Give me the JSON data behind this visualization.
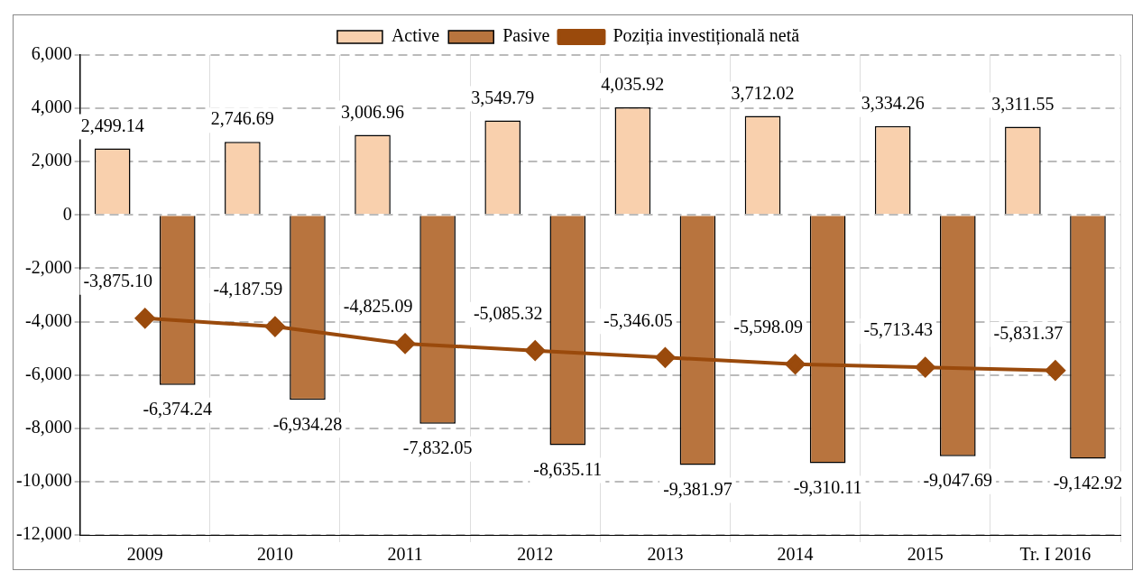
{
  "chart_data": {
    "type": "bar",
    "categories": [
      "2009",
      "2010",
      "2011",
      "2012",
      "2013",
      "2014",
      "2015",
      "Tr. I 2016"
    ],
    "series": [
      {
        "name": "Active",
        "color": "#f9d0ad",
        "values": [
          2499.14,
          2746.69,
          3006.96,
          3549.79,
          4035.92,
          3712.02,
          3334.26,
          3311.55
        ],
        "value_labels": [
          "2,499.14",
          "2,746.69",
          "3,006.96",
          "3,549.79",
          "4,035.92",
          "3,712.02",
          "3,334.26",
          "3,311.55"
        ]
      },
      {
        "name": "Pasive",
        "color": "#b8743e",
        "values": [
          -6374.24,
          -6934.28,
          -7832.05,
          -8635.11,
          -9381.97,
          -9310.11,
          -9047.69,
          -9142.92
        ],
        "value_labels": [
          "-6,374.24",
          "-6,934.28",
          "-7,832.05",
          "-8,635.11",
          "-9,381.97",
          "-9,310.11",
          "-9,047.69",
          "-9,142.92"
        ]
      },
      {
        "name": "Poziția investițională netă",
        "type": "line",
        "color": "#9a4a0c",
        "marker": "diamond",
        "values": [
          -3875.1,
          -4187.59,
          -4825.09,
          -5085.32,
          -5346.05,
          -5598.09,
          -5713.43,
          -5831.37
        ],
        "value_labels": [
          "-3,875.10",
          "-4,187.59",
          "-4,825.09",
          "-5,085.32",
          "-5,346.05",
          "-5,598.09",
          "-5,713.43",
          "-5,831.37"
        ]
      }
    ],
    "ylim": [
      -12000,
      6000
    ],
    "yticks": [
      {
        "value": -12000,
        "label": "-12,000"
      },
      {
        "value": -10000,
        "label": "-10,000"
      },
      {
        "value": -8000,
        "label": "-8,000"
      },
      {
        "value": -6000,
        "label": "-6,000"
      },
      {
        "value": -4000,
        "label": "-4,000"
      },
      {
        "value": -2000,
        "label": "-2,000"
      },
      0,
      {
        "value": 2000,
        "label": "2,000"
      },
      {
        "value": 4000,
        "label": "4,000"
      },
      {
        "value": 6000,
        "label": "6,000"
      }
    ],
    "grid": true,
    "legend": "top"
  }
}
